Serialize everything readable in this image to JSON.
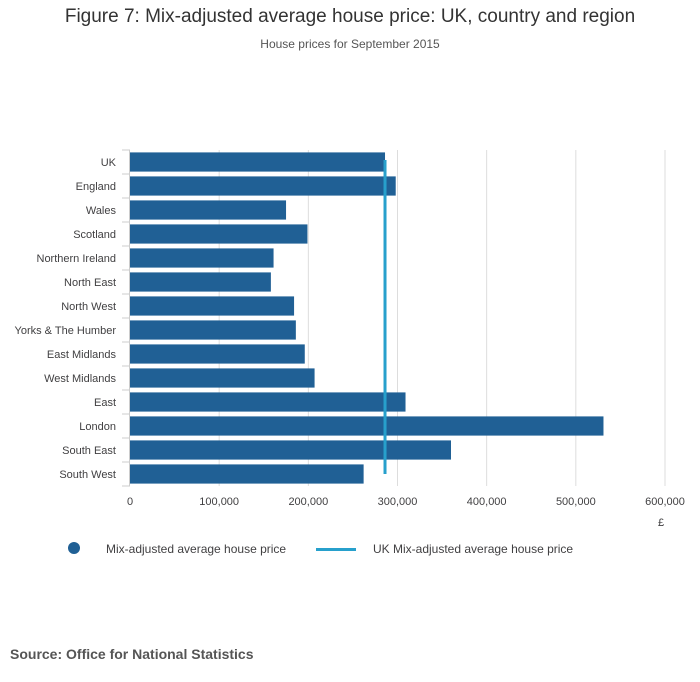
{
  "title": "Figure 7: Mix-adjusted average house price: UK, country and region",
  "subtitle": "House prices for September 2015",
  "source": "Source: Office for National Statistics",
  "colors": {
    "bar": "#206095",
    "reference_line": "#27a0cc",
    "grid": "#dddddd"
  },
  "chart_data": {
    "type": "bar",
    "orientation": "horizontal",
    "title": "Figure 7: Mix-adjusted average house price: UK, country and region",
    "subtitle": "House prices for September 2015",
    "xlabel": "£",
    "ylabel": "",
    "xlim": [
      0,
      600000
    ],
    "x_ticks": [
      0,
      100000,
      200000,
      300000,
      400000,
      500000,
      600000
    ],
    "x_tick_labels": [
      "0",
      "100,000",
      "200,000",
      "300,000",
      "400,000",
      "500,000",
      "600,000"
    ],
    "grid": true,
    "categories": [
      "UK",
      "England",
      "Wales",
      "Scotland",
      "Northern Ireland",
      "North East",
      "North West",
      "Yorks & The Humber",
      "East Midlands",
      "West Midlands",
      "East",
      "London",
      "South East",
      "South West"
    ],
    "series": [
      {
        "name": "Mix-adjusted average house price",
        "type": "bar",
        "values": [
          286000,
          298000,
          175000,
          199000,
          161000,
          158000,
          184000,
          186000,
          196000,
          207000,
          309000,
          531000,
          360000,
          262000
        ]
      },
      {
        "name": "UK Mix-adjusted average house price",
        "type": "reference_line",
        "value": 286000
      }
    ],
    "legend_position": "bottom-left"
  }
}
